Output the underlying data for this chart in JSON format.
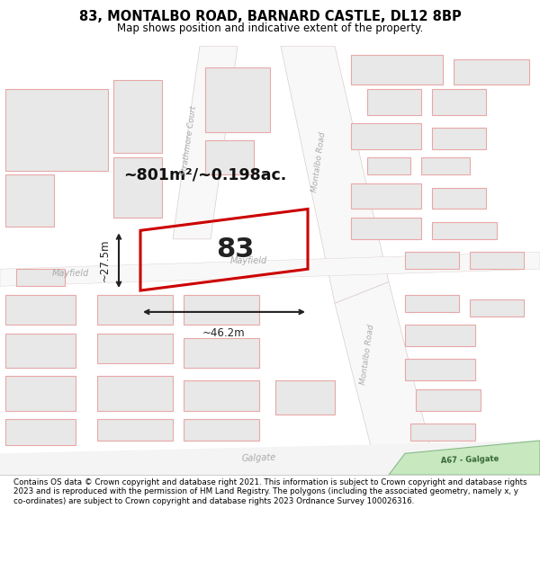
{
  "title": "83, MONTALBO ROAD, BARNARD CASTLE, DL12 8BP",
  "subtitle": "Map shows position and indicative extent of the property.",
  "footer": "Contains OS data © Crown copyright and database right 2021. This information is subject to Crown copyright and database rights 2023 and is reproduced with the permission of HM Land Registry. The polygons (including the associated geometry, namely x, y co-ordinates) are subject to Crown copyright and database rights 2023 Ordnance Survey 100026316.",
  "map_bg": "#ffffff",
  "building_fill": "#e8e8e8",
  "building_edge": "#e8a8a8",
  "building_lw": 0.8,
  "road_fill": "#ffffff",
  "road_edge": "#dddddd",
  "highlight_edge": "#cc0000",
  "highlight_lw": 2.2,
  "area_text": "~801m²/~0.198ac.",
  "label_83": "83",
  "dim_width": "~46.2m",
  "dim_height": "~27.5m",
  "a67_fill": "#c8e8c0",
  "a67_text": "A67 - Galgate",
  "galgate_text": "Galgate",
  "strathmore_text": "Strathmore Court",
  "montalbo_text": "Montalbo Road",
  "mayfield_text": "Mayfield",
  "label_color": "#aaaaaa",
  "dim_color": "#222222",
  "area_color": "#111111"
}
